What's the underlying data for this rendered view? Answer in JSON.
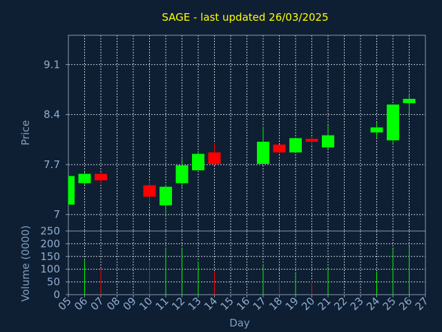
{
  "chart_data": {
    "type": "candlestick",
    "title": "SAGE - last updated 26/03/2025",
    "price_ylabel": "Price",
    "volume_ylabel": "Volume (0000)",
    "xlabel": "Day",
    "price_ylim": [
      6.77,
      9.51
    ],
    "price_ticks": [
      "7",
      "7.7",
      "8.4",
      "9.1"
    ],
    "volume_ylim": [
      0,
      250
    ],
    "volume_ticks": [
      "0",
      "50",
      "100",
      "150",
      "200",
      "250"
    ],
    "x_ticks": [
      "05",
      "06",
      "07",
      "08",
      "09",
      "10",
      "11",
      "12",
      "13",
      "14",
      "15",
      "16",
      "17",
      "18",
      "19",
      "20",
      "21",
      "22",
      "23",
      "24",
      "25",
      "26",
      "27"
    ],
    "colors": {
      "up": "#00ff00",
      "down": "#ff0000"
    },
    "candles": [
      {
        "day": "05",
        "open": 7.14,
        "close": 7.54,
        "high": 7.54,
        "low": 7.14,
        "volume": 0
      },
      {
        "day": "06",
        "open": 7.44,
        "close": 7.57,
        "high": 7.59,
        "low": 7.42,
        "volume": 135
      },
      {
        "day": "07",
        "open": 7.57,
        "close": 7.48,
        "high": 7.59,
        "low": 7.44,
        "volume": 103
      },
      {
        "day": "10",
        "open": 7.41,
        "close": 7.25,
        "high": 7.48,
        "low": 7.16,
        "volume": 135
      },
      {
        "day": "11",
        "open": 7.13,
        "close": 7.39,
        "high": 7.41,
        "low": 7.0,
        "volume": 183
      },
      {
        "day": "12",
        "open": 7.44,
        "close": 7.69,
        "high": 7.78,
        "low": 7.37,
        "volume": 183
      },
      {
        "day": "13",
        "open": 7.62,
        "close": 7.85,
        "high": 7.89,
        "low": 7.62,
        "volume": 130
      },
      {
        "day": "14",
        "open": 7.87,
        "close": 7.71,
        "high": 8.0,
        "low": 7.69,
        "volume": 90
      },
      {
        "day": "17",
        "open": 7.71,
        "close": 8.02,
        "high": 8.23,
        "low": 7.71,
        "volume": 120
      },
      {
        "day": "18",
        "open": 7.98,
        "close": 7.87,
        "high": 7.98,
        "low": 7.85,
        "volume": 60
      },
      {
        "day": "19",
        "open": 7.87,
        "close": 8.07,
        "high": 8.07,
        "low": 7.87,
        "volume": 80
      },
      {
        "day": "20",
        "open": 8.06,
        "close": 8.02,
        "high": 8.1,
        "low": 7.96,
        "volume": 55
      },
      {
        "day": "21",
        "open": 7.94,
        "close": 8.11,
        "high": 8.25,
        "low": 7.92,
        "volume": 105
      },
      {
        "day": "24",
        "open": 8.15,
        "close": 8.22,
        "high": 8.29,
        "low": 8.08,
        "volume": 90
      },
      {
        "day": "25",
        "open": 8.04,
        "close": 8.54,
        "high": 8.54,
        "low": 7.99,
        "volume": 180
      },
      {
        "day": "26",
        "open": 8.56,
        "close": 8.62,
        "high": 8.7,
        "low": 8.42,
        "volume": 190
      }
    ]
  }
}
